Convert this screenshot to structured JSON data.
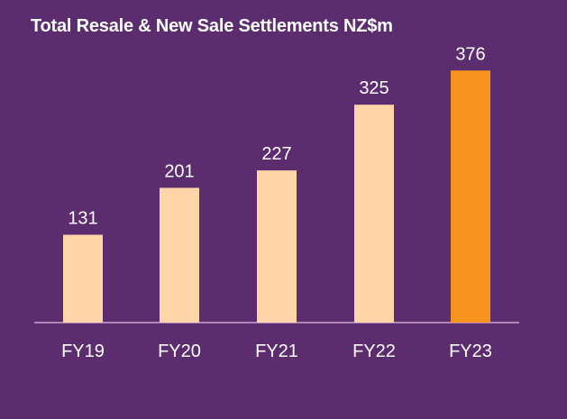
{
  "chart_data": {
    "type": "bar",
    "title": "Total Resale & New Sale Settlements NZ$m",
    "categories": [
      "FY19",
      "FY20",
      "FY21",
      "FY22",
      "FY23"
    ],
    "values": [
      131,
      201,
      227,
      325,
      376
    ],
    "data_labels": [
      "131",
      "201",
      "227",
      "325",
      "376"
    ],
    "bar_colors": [
      "#fdd5a8",
      "#fdd5a8",
      "#fdd5a8",
      "#fdd5a8",
      "#f7941d"
    ],
    "highlight_category": "FY23",
    "ylim": [
      0,
      400
    ],
    "grid": false,
    "legend": "none"
  },
  "colors": {
    "background": "#5c2d6e",
    "baseline": "#c9a3d4",
    "text": "#ffffff"
  }
}
